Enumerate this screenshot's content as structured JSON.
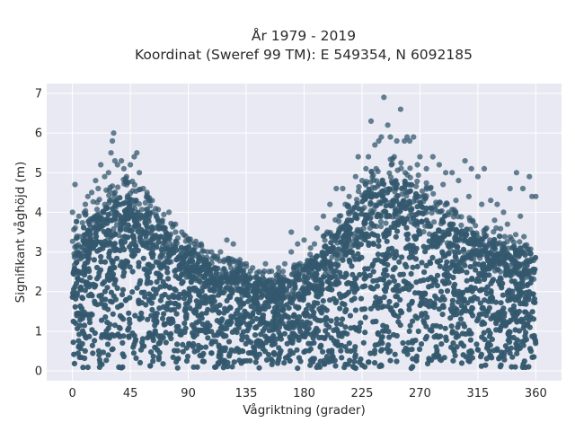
{
  "chart_data": {
    "type": "scatter",
    "title_line1": "År 1979 - 2019",
    "title_line2": "Koordinat (Sweref 99 TM): E 549354, N 6092185",
    "xlabel": "Vågriktning (grader)",
    "ylabel": "Signifikant våghöjd (m)",
    "xlim": [
      -20,
      380
    ],
    "ylim": [
      -0.25,
      7.25
    ],
    "xticks": [
      0,
      45,
      90,
      135,
      180,
      225,
      270,
      315,
      360
    ],
    "yticks": [
      0,
      1,
      2,
      3,
      4,
      5,
      6,
      7
    ],
    "grid": true,
    "legend": "none",
    "marker_color": "#34586e",
    "plot_background": "#e8e9f2",
    "series": [
      {
        "envelope_x": [
          0,
          10,
          20,
          30,
          40,
          50,
          60,
          70,
          80,
          90,
          100,
          110,
          120,
          130,
          140,
          150,
          160,
          170,
          180,
          190,
          200,
          210,
          220,
          230,
          240,
          250,
          260,
          270,
          280,
          290,
          300,
          310,
          320,
          330,
          340,
          350,
          360
        ],
        "envelope_y_upper": [
          3.4,
          3.7,
          4.0,
          4.3,
          4.5,
          4.3,
          4.0,
          3.7,
          3.3,
          3.1,
          2.9,
          2.7,
          2.6,
          2.5,
          2.4,
          2.3,
          2.3,
          2.4,
          2.6,
          2.9,
          3.3,
          3.7,
          4.2,
          4.6,
          4.8,
          4.9,
          4.8,
          4.5,
          4.2,
          3.9,
          3.6,
          3.5,
          3.4,
          3.3,
          3.2,
          3.1,
          3.0
        ],
        "envelope_y_lower": 0.05,
        "outliers": [
          [
            0,
            4.0
          ],
          [
            2,
            4.7
          ],
          [
            5,
            3.9
          ],
          [
            10,
            4.2
          ],
          [
            12,
            4.4
          ],
          [
            15,
            4.5
          ],
          [
            18,
            4.8
          ],
          [
            20,
            4.6
          ],
          [
            22,
            5.2
          ],
          [
            25,
            4.9
          ],
          [
            28,
            5.0
          ],
          [
            30,
            5.5
          ],
          [
            31,
            5.8
          ],
          [
            32,
            6.0
          ],
          [
            33,
            5.3
          ],
          [
            35,
            5.2
          ],
          [
            38,
            5.3
          ],
          [
            40,
            5.1
          ],
          [
            42,
            4.9
          ],
          [
            45,
            5.2
          ],
          [
            48,
            5.4
          ],
          [
            50,
            5.5
          ],
          [
            52,
            5.0
          ],
          [
            55,
            4.6
          ],
          [
            58,
            4.5
          ],
          [
            60,
            4.3
          ],
          [
            65,
            3.9
          ],
          [
            70,
            3.8
          ],
          [
            75,
            4.0
          ],
          [
            80,
            3.7
          ],
          [
            85,
            3.5
          ],
          [
            90,
            3.3
          ],
          [
            95,
            3.2
          ],
          [
            100,
            3.2
          ],
          [
            105,
            3.0
          ],
          [
            110,
            2.9
          ],
          [
            115,
            3.0
          ],
          [
            120,
            3.3
          ],
          [
            125,
            3.2
          ],
          [
            130,
            2.8
          ],
          [
            135,
            2.7
          ],
          [
            140,
            2.6
          ],
          [
            150,
            2.7
          ],
          [
            160,
            2.6
          ],
          [
            170,
            3.0
          ],
          [
            170,
            3.5
          ],
          [
            175,
            3.2
          ],
          [
            180,
            3.3
          ],
          [
            185,
            3.1
          ],
          [
            190,
            3.6
          ],
          [
            195,
            3.9
          ],
          [
            200,
            4.2
          ],
          [
            205,
            4.6
          ],
          [
            210,
            4.6
          ],
          [
            215,
            4.4
          ],
          [
            220,
            4.9
          ],
          [
            222,
            5.4
          ],
          [
            228,
            5.1
          ],
          [
            230,
            5.4
          ],
          [
            232,
            6.3
          ],
          [
            235,
            5.7
          ],
          [
            238,
            5.8
          ],
          [
            240,
            5.9
          ],
          [
            242,
            6.9
          ],
          [
            245,
            6.2
          ],
          [
            247,
            5.9
          ],
          [
            250,
            5.4
          ],
          [
            252,
            5.8
          ],
          [
            255,
            6.6
          ],
          [
            258,
            5.8
          ],
          [
            260,
            5.9
          ],
          [
            262,
            5.8
          ],
          [
            265,
            5.9
          ],
          [
            270,
            5.4
          ],
          [
            275,
            5.1
          ],
          [
            280,
            5.4
          ],
          [
            285,
            5.2
          ],
          [
            290,
            5.0
          ],
          [
            295,
            5.0
          ],
          [
            300,
            4.8
          ],
          [
            305,
            5.3
          ],
          [
            310,
            5.1
          ],
          [
            315,
            4.9
          ],
          [
            320,
            5.1
          ],
          [
            325,
            4.3
          ],
          [
            330,
            4.2
          ],
          [
            335,
            4.0
          ],
          [
            340,
            4.6
          ],
          [
            345,
            5.0
          ],
          [
            350,
            4.6
          ],
          [
            355,
            4.9
          ],
          [
            357,
            4.4
          ],
          [
            360,
            4.4
          ],
          [
            348,
            3.9
          ],
          [
            338,
            3.7
          ],
          [
            328,
            3.8
          ],
          [
            318,
            4.2
          ],
          [
            308,
            4.4
          ],
          [
            298,
            4.3
          ],
          [
            288,
            4.7
          ],
          [
            278,
            4.6
          ],
          [
            268,
            5.2
          ],
          [
            48,
            4.2
          ],
          [
            62,
            4.0
          ],
          [
            72,
            3.6
          ],
          [
            88,
            3.4
          ],
          [
            108,
            3.0
          ],
          [
            118,
            2.8
          ],
          [
            145,
            2.5
          ],
          [
            165,
            2.7
          ],
          [
            188,
            3.2
          ],
          [
            198,
            3.5
          ],
          [
            212,
            4.2
          ],
          [
            225,
            4.8
          ],
          [
            236,
            5.1
          ]
        ]
      }
    ]
  }
}
